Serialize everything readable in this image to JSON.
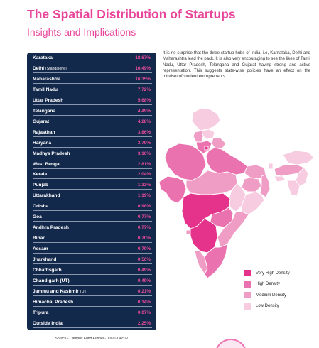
{
  "header": {
    "title": "The Spatial Distribution of Startups",
    "subtitle": "Insights and Implications"
  },
  "states": [
    {
      "name": "Karataka",
      "note": "",
      "value": "18.67%"
    },
    {
      "name": "Delhi",
      "note": "(Standalone)",
      "value": "16.49%"
    },
    {
      "name": "Maharashtra",
      "note": "",
      "value": "16.35%"
    },
    {
      "name": "Tamil Nadu",
      "note": "",
      "value": "7.72%"
    },
    {
      "name": "Uttar Pradesh",
      "note": "",
      "value": "5.68%"
    },
    {
      "name": "Telangana",
      "note": "",
      "value": "4.49%"
    },
    {
      "name": "Gujarat",
      "note": "",
      "value": "4.28%"
    },
    {
      "name": "Rajasthan",
      "note": "",
      "value": "3.86%"
    },
    {
      "name": "Haryana",
      "note": "",
      "value": "3.79%"
    },
    {
      "name": "Madhya Pradesh",
      "note": "",
      "value": "3.16%"
    },
    {
      "name": "West Bengal",
      "note": "",
      "value": "2.81%"
    },
    {
      "name": "Kerala",
      "note": "",
      "value": "2.04%"
    },
    {
      "name": "Punjab",
      "note": "",
      "value": "1.33%"
    },
    {
      "name": "Uttarakhand",
      "note": "",
      "value": "1.19%"
    },
    {
      "name": "Odisha",
      "note": "",
      "value": "0.98%"
    },
    {
      "name": "Goa",
      "note": "",
      "value": "0.77%"
    },
    {
      "name": "Andhra Pradesh",
      "note": "",
      "value": "0.77%"
    },
    {
      "name": "Bihar",
      "note": "",
      "value": "0.70%"
    },
    {
      "name": "Assam",
      "note": "",
      "value": "0.70%"
    },
    {
      "name": "Jharkhand",
      "note": "",
      "value": "0.56%"
    },
    {
      "name": "Chhattisgarh",
      "note": "",
      "value": "0.49%"
    },
    {
      "name": "Chandigarh (UT)",
      "note": "",
      "value": "0.49%"
    },
    {
      "name": "Jammu and Kashmir",
      "note": "(UT)",
      "value": "0.21%"
    },
    {
      "name": "Himachal Pradesh",
      "note": "",
      "value": "0.14%"
    },
    {
      "name": "Tripura",
      "note": "",
      "value": "0.07%"
    },
    {
      "name": "Outside India",
      "note": "",
      "value": "2.25%"
    }
  ],
  "source": "Source - Campus Fund Funnel - Jul'21-Dec'22",
  "intro": "It is no surprise that the three startup hubs of India, i.e, Karnataka, Delhi and Maharashtra lead the pack. It is also very encouraging to see the likes of Tamil Nadu, Uttar Pradesh, Telangana and Gujarat having strong and active representation. This suggests state-wise policies have an effect on the mindset of student entrepreneurs.",
  "legend": [
    {
      "label": "Very High Density",
      "color": "#e5338c"
    },
    {
      "label": "High Density",
      "color": "#ea72ae"
    },
    {
      "label": "Medium Density",
      "color": "#f09dc6"
    },
    {
      "label": "Low Density",
      "color": "#f7cce1"
    }
  ],
  "colors": {
    "accent": "#e8449a",
    "panel": "#13294b",
    "value_text": "#ec4c9b"
  }
}
